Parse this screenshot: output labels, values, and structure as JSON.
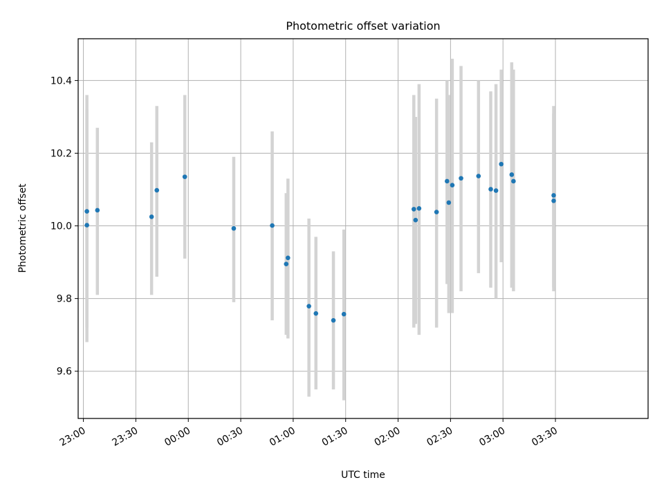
{
  "chart_data": {
    "type": "scatter",
    "title": "Photometric offset variation",
    "xlabel": "UTC time",
    "ylabel": "Photometric offset",
    "xlim": [
      "22:57",
      "04:23"
    ],
    "ylim": [
      9.47,
      10.515
    ],
    "grid": true,
    "x_ticks": [
      "23:00",
      "23:30",
      "00:00",
      "00:30",
      "01:00",
      "01:30",
      "02:00",
      "02:30",
      "03:00",
      "03:30"
    ],
    "y_ticks": [
      9.6,
      9.8,
      10.0,
      10.2,
      10.4
    ],
    "y_tick_labels": [
      "9.6",
      "9.8",
      "10.0",
      "10.2",
      "10.4"
    ],
    "point_color": "#1f77b4",
    "errorbar_color": "#d3d3d3",
    "points": [
      {
        "x": "23:02",
        "y": 10.04,
        "low": 9.72,
        "high": 10.36
      },
      {
        "x": "23:02",
        "y": 10.002,
        "low": 9.68,
        "high": 10.32
      },
      {
        "x": "23:08",
        "y": 10.043,
        "low": 9.81,
        "high": 10.27
      },
      {
        "x": "23:39",
        "y": 10.025,
        "low": 9.81,
        "high": 10.23
      },
      {
        "x": "23:42",
        "y": 10.098,
        "low": 9.86,
        "high": 10.33
      },
      {
        "x": "23:58",
        "y": 10.135,
        "low": 9.91,
        "high": 10.36
      },
      {
        "x": "00:26",
        "y": 9.993,
        "low": 9.79,
        "high": 10.19
      },
      {
        "x": "00:48",
        "y": 10.001,
        "low": 9.74,
        "high": 10.26
      },
      {
        "x": "00:56",
        "y": 9.895,
        "low": 9.7,
        "high": 10.09
      },
      {
        "x": "00:57",
        "y": 9.912,
        "low": 9.69,
        "high": 10.13
      },
      {
        "x": "01:09",
        "y": 9.779,
        "low": 9.53,
        "high": 10.02
      },
      {
        "x": "01:13",
        "y": 9.759,
        "low": 9.55,
        "high": 9.97
      },
      {
        "x": "01:23",
        "y": 9.74,
        "low": 9.55,
        "high": 9.93
      },
      {
        "x": "01:29",
        "y": 9.757,
        "low": 9.52,
        "high": 9.99
      },
      {
        "x": "02:09",
        "y": 10.046,
        "low": 9.72,
        "high": 10.36
      },
      {
        "x": "02:10",
        "y": 10.016,
        "low": 9.73,
        "high": 10.3
      },
      {
        "x": "02:12",
        "y": 10.048,
        "low": 9.7,
        "high": 10.39
      },
      {
        "x": "02:22",
        "y": 10.038,
        "low": 9.72,
        "high": 10.35
      },
      {
        "x": "02:28",
        "y": 10.123,
        "low": 9.84,
        "high": 10.4
      },
      {
        "x": "02:29",
        "y": 10.064,
        "low": 9.76,
        "high": 10.36
      },
      {
        "x": "02:31",
        "y": 10.112,
        "low": 9.76,
        "high": 10.46
      },
      {
        "x": "02:36",
        "y": 10.131,
        "low": 9.82,
        "high": 10.44
      },
      {
        "x": "02:46",
        "y": 10.137,
        "low": 9.87,
        "high": 10.4
      },
      {
        "x": "02:53",
        "y": 10.101,
        "low": 9.83,
        "high": 10.37
      },
      {
        "x": "02:56",
        "y": 10.097,
        "low": 9.8,
        "high": 10.39
      },
      {
        "x": "02:59",
        "y": 10.17,
        "low": 9.9,
        "high": 10.43
      },
      {
        "x": "03:05",
        "y": 10.141,
        "low": 9.83,
        "high": 10.45
      },
      {
        "x": "03:06",
        "y": 10.123,
        "low": 9.82,
        "high": 10.43
      },
      {
        "x": "03:29",
        "y": 10.069,
        "low": 9.82,
        "high": 10.31
      },
      {
        "x": "03:29",
        "y": 10.084,
        "low": 9.83,
        "high": 10.33
      }
    ]
  }
}
